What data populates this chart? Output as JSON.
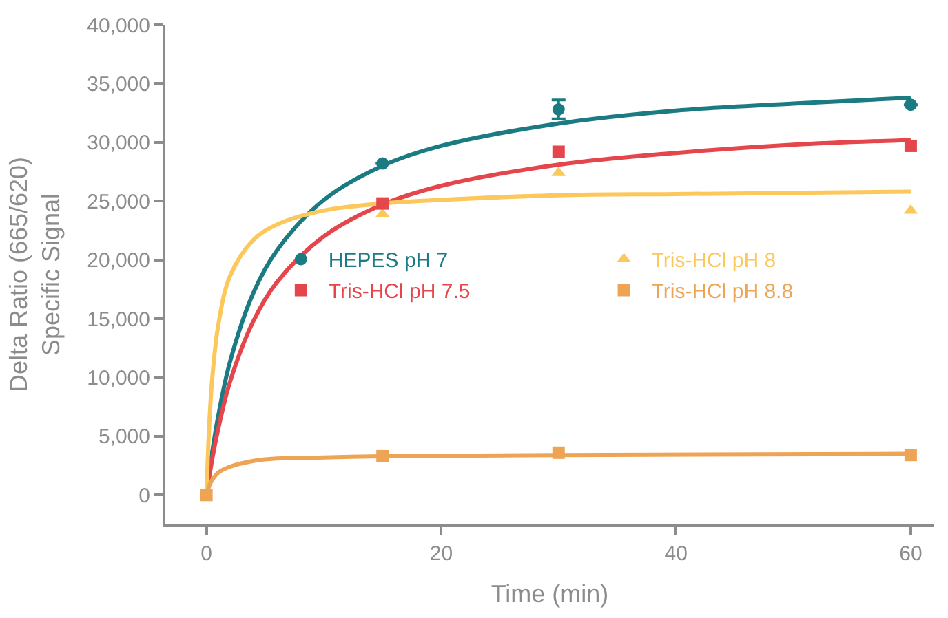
{
  "chart_data": {
    "type": "scatter",
    "xlabel": "Time (min)",
    "ylabel": "Delta Ratio (665/620)\nSpecific Signal",
    "xlim": [
      -3.5,
      62
    ],
    "xticks": [
      0,
      20,
      40,
      60
    ],
    "ylim": [
      -2500,
      40000
    ],
    "yticks": [
      {
        "value": 0,
        "label": "0"
      },
      {
        "value": 5000,
        "label": "5,000"
      },
      {
        "value": 10000,
        "label": "10,000"
      },
      {
        "value": 15000,
        "label": "15,000"
      },
      {
        "value": 20000,
        "label": "20,000"
      },
      {
        "value": 25000,
        "label": "25,000"
      },
      {
        "value": 30000,
        "label": "30,000"
      },
      {
        "value": 35000,
        "label": "35,000"
      },
      {
        "value": 40000,
        "label": "40,000"
      }
    ],
    "legend": "right",
    "series": [
      {
        "name": "HEPES pH 7",
        "color": "#1b7b82",
        "marker": "circle",
        "x": [
          15,
          30,
          60
        ],
        "values": [
          28200,
          32800,
          33200
        ],
        "errors": [
          null,
          800,
          null
        ]
      },
      {
        "name": "Tris-HCl pH 7.5",
        "color": "#e5464b",
        "marker": "square",
        "x": [
          15,
          30,
          60
        ],
        "values": [
          24800,
          29200,
          29700
        ]
      },
      {
        "name": "Tris-HCl pH 8",
        "color": "#fcc85c",
        "marker": "triangle",
        "x": [
          15,
          30,
          60
        ],
        "values": [
          23900,
          27400,
          24200
        ]
      },
      {
        "name": "Tris-HCl pH 8.8",
        "color": "#eea455",
        "marker": "square",
        "x": [
          0,
          15,
          30,
          60
        ],
        "values": [
          0,
          3300,
          3600,
          3400
        ]
      },
      {
        "type": "line",
        "color": "#1b7b82",
        "marker": "none",
        "x": [
          0,
          0.5,
          1,
          2,
          4,
          6,
          10,
          15,
          20,
          30,
          40,
          50,
          60
        ],
        "values": [
          0,
          3700,
          6700,
          11300,
          17200,
          20800,
          25100,
          28000,
          29700,
          31600,
          32700,
          33300,
          33800
        ]
      },
      {
        "type": "line",
        "color": "#e5464b",
        "marker": "none",
        "x": [
          0,
          0.5,
          1,
          2,
          4,
          6,
          10,
          15,
          20,
          30,
          40,
          50,
          60
        ],
        "values": [
          0,
          3100,
          5600,
          9600,
          14800,
          18100,
          22000,
          24700,
          26300,
          28100,
          29100,
          29800,
          30200
        ]
      },
      {
        "type": "line",
        "color": "#fcc85c",
        "marker": "none",
        "x": [
          0,
          0.25,
          0.5,
          1,
          2,
          4,
          6,
          10,
          15,
          20,
          30,
          40,
          50,
          60
        ],
        "values": [
          0,
          6200,
          10000,
          14400,
          18600,
          21700,
          23000,
          24200,
          24800,
          25100,
          25500,
          25600,
          25700,
          25800
        ]
      },
      {
        "type": "line",
        "color": "#eea455",
        "marker": "none",
        "x": [
          0,
          0.25,
          0.5,
          1,
          2,
          4,
          6,
          10,
          15,
          30,
          60
        ],
        "values": [
          0,
          800,
          1300,
          1900,
          2400,
          2900,
          3100,
          3200,
          3300,
          3400,
          3500
        ]
      }
    ]
  }
}
